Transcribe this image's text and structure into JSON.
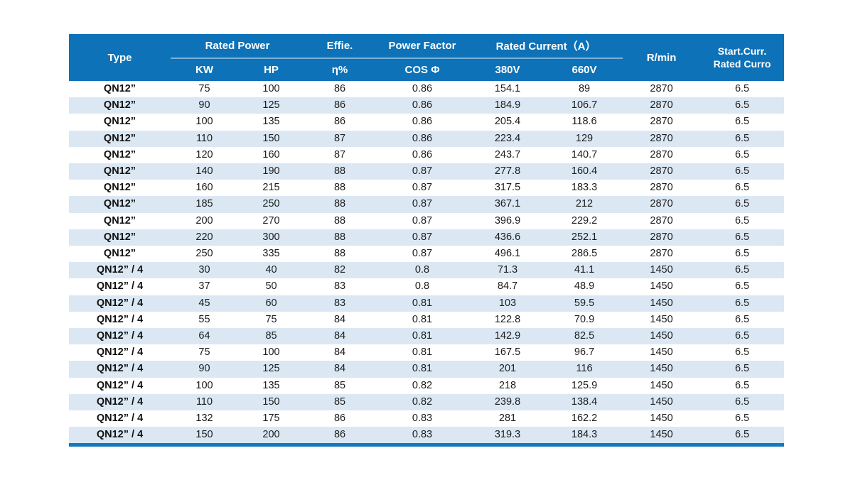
{
  "colors": {
    "header_bg": "#0d72b8",
    "header_text": "#ffffff",
    "stripe_bg": "#dbe8f4",
    "row_bg": "#ffffff",
    "body_text": "#1c1c1c",
    "header_divider": "#7ab1d8",
    "bottom_border": "#1478bd"
  },
  "table": {
    "header": {
      "type": "Type",
      "rated_power": "Rated Power",
      "kw": "KW",
      "hp": "HP",
      "effie": "Effie.",
      "eta": "η%",
      "power_factor": "Power Factor",
      "cos_phi": "COS Φ",
      "rated_current": "Rated Current（A）",
      "v380": "380V",
      "v660": "660V",
      "rpm": "R/min",
      "start_curr_line1": "Start.Curr.",
      "start_curr_line2": "Rated Curro"
    },
    "col_keys": [
      "type",
      "kw",
      "hp",
      "eta-percent",
      "cos-phi",
      "current-380v",
      "current-660v",
      "rpm",
      "start-curr-ratio"
    ],
    "rows": [
      [
        "QN12”",
        "75",
        "100",
        "86",
        "0.86",
        "154.1",
        "89",
        "2870",
        "6.5"
      ],
      [
        "QN12”",
        "90",
        "125",
        "86",
        "0.86",
        "184.9",
        "106.7",
        "2870",
        "6.5"
      ],
      [
        "QN12”",
        "100",
        "135",
        "86",
        "0.86",
        "205.4",
        "118.6",
        "2870",
        "6.5"
      ],
      [
        "QN12”",
        "110",
        "150",
        "87",
        "0.86",
        "223.4",
        "129",
        "2870",
        "6.5"
      ],
      [
        "QN12”",
        "120",
        "160",
        "87",
        "0.86",
        "243.7",
        "140.7",
        "2870",
        "6.5"
      ],
      [
        "QN12”",
        "140",
        "190",
        "88",
        "0.87",
        "277.8",
        "160.4",
        "2870",
        "6.5"
      ],
      [
        "QN12”",
        "160",
        "215",
        "88",
        "0.87",
        "317.5",
        "183.3",
        "2870",
        "6.5"
      ],
      [
        "QN12”",
        "185",
        "250",
        "88",
        "0.87",
        "367.1",
        "212",
        "2870",
        "6.5"
      ],
      [
        "QN12”",
        "200",
        "270",
        "88",
        "0.87",
        "396.9",
        "229.2",
        "2870",
        "6.5"
      ],
      [
        "QN12”",
        "220",
        "300",
        "88",
        "0.87",
        "436.6",
        "252.1",
        "2870",
        "6.5"
      ],
      [
        "QN12”",
        "250",
        "335",
        "88",
        "0.87",
        "496.1",
        "286.5",
        "2870",
        "6.5"
      ],
      [
        "QN12” / 4",
        "30",
        "40",
        "82",
        "0.8",
        "71.3",
        "41.1",
        "1450",
        "6.5"
      ],
      [
        "QN12” / 4",
        "37",
        "50",
        "83",
        "0.8",
        "84.7",
        "48.9",
        "1450",
        "6.5"
      ],
      [
        "QN12” / 4",
        "45",
        "60",
        "83",
        "0.81",
        "103",
        "59.5",
        "1450",
        "6.5"
      ],
      [
        "QN12” / 4",
        "55",
        "75",
        "84",
        "0.81",
        "122.8",
        "70.9",
        "1450",
        "6.5"
      ],
      [
        "QN12” / 4",
        "64",
        "85",
        "84",
        "0.81",
        "142.9",
        "82.5",
        "1450",
        "6.5"
      ],
      [
        "QN12” / 4",
        "75",
        "100",
        "84",
        "0.81",
        "167.5",
        "96.7",
        "1450",
        "6.5"
      ],
      [
        "QN12” / 4",
        "90",
        "125",
        "84",
        "0.81",
        "201",
        "116",
        "1450",
        "6.5"
      ],
      [
        "QN12” / 4",
        "100",
        "135",
        "85",
        "0.82",
        "218",
        "125.9",
        "1450",
        "6.5"
      ],
      [
        "QN12” / 4",
        "110",
        "150",
        "85",
        "0.82",
        "239.8",
        "138.4",
        "1450",
        "6.5"
      ],
      [
        "QN12” / 4",
        "132",
        "175",
        "86",
        "0.83",
        "281",
        "162.2",
        "1450",
        "6.5"
      ],
      [
        "QN12” / 4",
        "150",
        "200",
        "86",
        "0.83",
        "319.3",
        "184.3",
        "1450",
        "6.5"
      ]
    ]
  }
}
